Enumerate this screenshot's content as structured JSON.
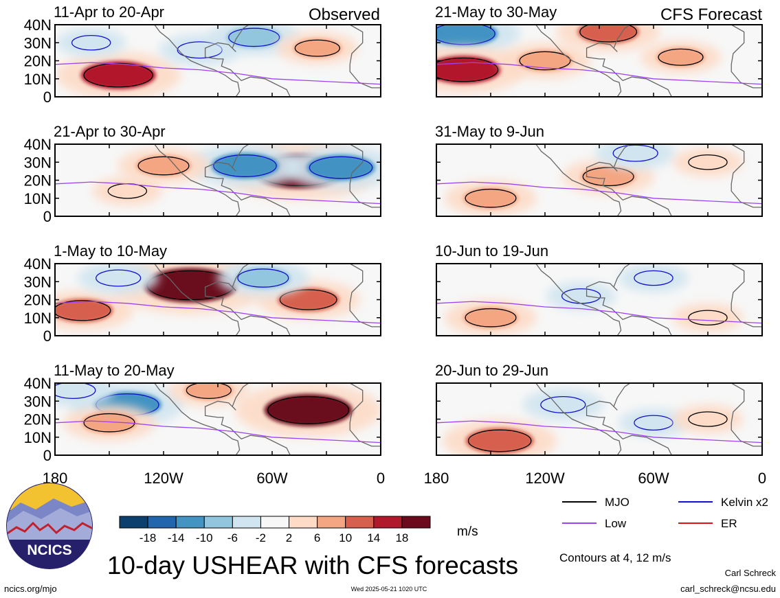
{
  "chart_data": {
    "type": "heatmap",
    "title": "10-day USHEAR with CFS forecasts",
    "column_labels": [
      "Observed",
      "CFS Forecast"
    ],
    "x_ticks": [
      "180",
      "120W",
      "60W",
      "0"
    ],
    "y_ticks": [
      "40N",
      "30N",
      "20N",
      "10N",
      "0"
    ],
    "xlim": [
      180,
      0
    ],
    "ylim": [
      0,
      40
    ],
    "colorbar": {
      "unit": "m/s",
      "bins": [
        -22,
        -18,
        -14,
        -10,
        -6,
        -2,
        2,
        6,
        10,
        14,
        18,
        22
      ],
      "tick_labels": [
        "-18",
        "-14",
        "-10",
        "-6",
        "-2",
        "2",
        "6",
        "10",
        "14",
        "18"
      ],
      "colors": [
        "#0b3f6e",
        "#2166ac",
        "#4393c3",
        "#92c5de",
        "#d1e5f0",
        "#f7f7f7",
        "#fddbc7",
        "#f4a582",
        "#d6604d",
        "#b2182b",
        "#6b0a1c"
      ]
    },
    "legend": [
      {
        "name": "MJO",
        "color": "#000000"
      },
      {
        "name": "Kelvin x2",
        "color": "#1010c8"
      },
      {
        "name": "Low",
        "color": "#a040f0"
      },
      {
        "name": "ER",
        "color": "#e01010"
      }
    ],
    "contour_note": "Contours at 4, 12 m/s",
    "panels": [
      {
        "period": "11-Apr to 20-Apr",
        "kind": "observed",
        "anomalies": [
          {
            "lon": 145,
            "lat": 12,
            "value": 14
          },
          {
            "lon": 100,
            "lat": 26,
            "value": -6
          },
          {
            "lon": 70,
            "lat": 33,
            "value": -8
          },
          {
            "lon": 35,
            "lat": 27,
            "value": 6
          },
          {
            "lon": 160,
            "lat": 30,
            "value": -4
          }
        ]
      },
      {
        "period": "21-May to 30-May",
        "kind": "forecast",
        "anomalies": [
          {
            "lon": 165,
            "lat": 35,
            "value": -12
          },
          {
            "lon": 165,
            "lat": 15,
            "value": 14
          },
          {
            "lon": 120,
            "lat": 20,
            "value": 8
          },
          {
            "lon": 85,
            "lat": 36,
            "value": 10
          },
          {
            "lon": 45,
            "lat": 22,
            "value": 6
          }
        ]
      },
      {
        "period": "21-Apr to 30-Apr",
        "kind": "observed",
        "anomalies": [
          {
            "lon": 45,
            "lat": 25,
            "value": 20
          },
          {
            "lon": 75,
            "lat": 28,
            "value": -12
          },
          {
            "lon": 22,
            "lat": 27,
            "value": -12
          },
          {
            "lon": 120,
            "lat": 28,
            "value": 8
          },
          {
            "lon": 140,
            "lat": 14,
            "value": 4
          }
        ]
      },
      {
        "period": "31-May to 9-Jun",
        "kind": "forecast",
        "anomalies": [
          {
            "lon": 150,
            "lat": 10,
            "value": 8
          },
          {
            "lon": 85,
            "lat": 22,
            "value": 8
          },
          {
            "lon": 70,
            "lat": 35,
            "value": -6
          },
          {
            "lon": 30,
            "lat": 30,
            "value": 4
          }
        ]
      },
      {
        "period": "1-May to 10-May",
        "kind": "observed",
        "anomalies": [
          {
            "lon": 105,
            "lat": 28,
            "value": 20
          },
          {
            "lon": 40,
            "lat": 20,
            "value": 10
          },
          {
            "lon": 165,
            "lat": 14,
            "value": 10
          },
          {
            "lon": 65,
            "lat": 32,
            "value": -8
          },
          {
            "lon": 145,
            "lat": 32,
            "value": -6
          }
        ]
      },
      {
        "period": "10-Jun to 19-Jun",
        "kind": "forecast",
        "anomalies": [
          {
            "lon": 150,
            "lat": 10,
            "value": 8
          },
          {
            "lon": 100,
            "lat": 22,
            "value": -4
          },
          {
            "lon": 30,
            "lat": 10,
            "value": 4
          },
          {
            "lon": 60,
            "lat": 32,
            "value": -4
          }
        ]
      },
      {
        "period": "11-May to 20-May",
        "kind": "observed",
        "anomalies": [
          {
            "lon": 40,
            "lat": 25,
            "value": 18
          },
          {
            "lon": 140,
            "lat": 28,
            "value": -12
          },
          {
            "lon": 150,
            "lat": 18,
            "value": 8
          },
          {
            "lon": 95,
            "lat": 36,
            "value": 6
          },
          {
            "lon": 170,
            "lat": 36,
            "value": -6
          }
        ]
      },
      {
        "period": "20-Jun to 29-Jun",
        "kind": "forecast",
        "anomalies": [
          {
            "lon": 145,
            "lat": 8,
            "value": 12
          },
          {
            "lon": 110,
            "lat": 28,
            "value": -6
          },
          {
            "lon": 60,
            "lat": 18,
            "value": -4
          },
          {
            "lon": 30,
            "lat": 20,
            "value": 4
          }
        ]
      }
    ]
  },
  "logo": {
    "text": "NCICS"
  },
  "footer": {
    "left": "ncics.org/mjo",
    "center": "Wed 2025-05-21 1020 UTC",
    "author": "Carl Schreck",
    "email": "carl_schreck@ncsu.edu"
  }
}
